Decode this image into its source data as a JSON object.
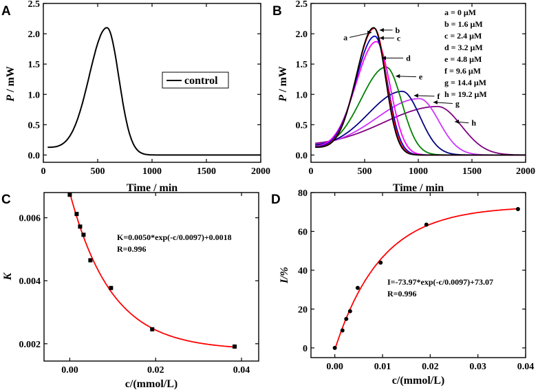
{
  "panels": {
    "A": "A",
    "B": "B",
    "C": "C",
    "D": "D"
  },
  "chart_data": [
    {
      "id": "A",
      "type": "line",
      "xlabel": "Time / min",
      "ylabel": "P / mW",
      "ylabel_var": "P",
      "ylabel_unit": " / mW",
      "xlim": [
        0,
        2000
      ],
      "ylim": [
        -0.12,
        2.5
      ],
      "xticks": [
        0,
        500,
        1000,
        1500,
        2000
      ],
      "yticks": [
        0.0,
        0.5,
        1.0,
        1.5,
        2.0,
        2.5
      ],
      "xtick_labels": [
        "0",
        "500",
        "1000",
        "1500",
        "2000"
      ],
      "ytick_labels": [
        "0.0",
        "0.5",
        "1.0",
        "1.5",
        "2.0",
        "2.5"
      ],
      "legend": {
        "entry": "control",
        "color": "#000000",
        "placement": "middle-right"
      },
      "series": [
        {
          "name": "control",
          "color": "#000000",
          "peak_time": 585,
          "peak_power": 2.1,
          "rise_width": 165,
          "fall_width": 110,
          "start_time": 40
        }
      ]
    },
    {
      "id": "B",
      "type": "line",
      "xlabel": "Time / min",
      "ylabel": "P / mW",
      "ylabel_var": "P",
      "ylabel_unit": " / mW",
      "xlim": [
        0,
        2000
      ],
      "ylim": [
        -0.12,
        2.5
      ],
      "xticks": [
        0,
        500,
        1000,
        1500,
        2000
      ],
      "yticks": [
        0.0,
        0.5,
        1.0,
        1.5,
        2.0,
        2.5
      ],
      "xtick_labels": [
        "0",
        "500",
        "1000",
        "1500",
        "2000"
      ],
      "ytick_labels": [
        "0.0",
        "0.5",
        "1.0",
        "1.5",
        "2.0",
        "2.5"
      ],
      "legend_entries": [
        "a  = 0 μM",
        "b  = 1.6 μM",
        "c  = 2.4 μM",
        "d  = 3.2 μM",
        "e  = 4.8 μM",
        "f  = 9.6 μM",
        "g  = 14.4 μM",
        "h  = 19.2 μM"
      ],
      "series": [
        {
          "name": "a",
          "concentration_uM": 0,
          "color": "#000000",
          "peak_time": 585,
          "peak_power": 2.1,
          "rise_width": 165,
          "fall_width": 110,
          "start_time": 40
        },
        {
          "name": "b",
          "concentration_uM": 1.6,
          "color": "#ff0000",
          "peak_time": 590,
          "peak_power": 2.09,
          "rise_width": 170,
          "fall_width": 112,
          "start_time": 40
        },
        {
          "name": "c",
          "concentration_uM": 2.4,
          "color": "#0000cc",
          "peak_time": 595,
          "peak_power": 1.96,
          "rise_width": 180,
          "fall_width": 118,
          "start_time": 40
        },
        {
          "name": "d",
          "concentration_uM": 3.2,
          "color": "#ff00ff",
          "peak_time": 610,
          "peak_power": 1.87,
          "rise_width": 195,
          "fall_width": 128,
          "start_time": 40
        },
        {
          "name": "e",
          "concentration_uM": 4.8,
          "color": "#008000",
          "peak_time": 700,
          "peak_power": 1.45,
          "rise_width": 240,
          "fall_width": 145,
          "start_time": 40
        },
        {
          "name": "f",
          "concentration_uM": 9.6,
          "color": "#000080",
          "peak_time": 850,
          "peak_power": 1.05,
          "rise_width": 330,
          "fall_width": 165,
          "start_time": 40
        },
        {
          "name": "g",
          "concentration_uM": 14.4,
          "color": "#cc33ff",
          "peak_time": 1010,
          "peak_power": 0.93,
          "rise_width": 420,
          "fall_width": 180,
          "start_time": 40
        },
        {
          "name": "h",
          "concentration_uM": 19.2,
          "color": "#800080",
          "peak_time": 1180,
          "peak_power": 0.8,
          "rise_width": 540,
          "fall_width": 220,
          "start_time": 40
        }
      ],
      "curve_labels": [
        {
          "text": "a",
          "target": [
            565,
            2.02
          ],
          "at": [
            360,
            1.94
          ]
        },
        {
          "text": "b",
          "target": [
            640,
            2.06
          ],
          "at": [
            760,
            2.06
          ]
        },
        {
          "text": "c",
          "target": [
            640,
            1.93
          ],
          "at": [
            775,
            1.93
          ]
        },
        {
          "text": "d",
          "target": [
            660,
            1.6
          ],
          "at": [
            860,
            1.6
          ]
        },
        {
          "text": "e",
          "target": [
            790,
            1.3
          ],
          "at": [
            980,
            1.29
          ]
        },
        {
          "text": "f",
          "target": [
            960,
            0.98
          ],
          "at": [
            1150,
            0.97
          ]
        },
        {
          "text": "g",
          "target": [
            1140,
            0.87
          ],
          "at": [
            1320,
            0.85
          ]
        },
        {
          "text": "h",
          "target": [
            1340,
            0.55
          ],
          "at": [
            1470,
            0.53
          ]
        }
      ]
    },
    {
      "id": "C",
      "type": "scatter",
      "xlabel": "c/(mmol/L)",
      "ylabel": "K",
      "xlim": [
        -0.006,
        0.044
      ],
      "ylim": [
        0.00145,
        0.0068
      ],
      "xticks": [
        0.0,
        0.02,
        0.04
      ],
      "yticks": [
        0.002,
        0.004,
        0.006
      ],
      "xtick_labels": [
        "0.00",
        "0.02",
        "0.04"
      ],
      "ytick_labels": [
        "0.002",
        "0.004",
        "0.006"
      ],
      "points": {
        "x": [
          0.0,
          0.0016,
          0.0024,
          0.0032,
          0.0048,
          0.0096,
          0.0192,
          0.0384
        ],
        "y": [
          0.00673,
          0.00612,
          0.00572,
          0.00546,
          0.00465,
          0.00377,
          0.00246,
          0.00191
        ]
      },
      "fit": {
        "A": 0.005,
        "t": 0.0097,
        "y0": 0.0018,
        "color": "#ff0000"
      },
      "equation": "K=0.0050*exp(-c/0.0097)+0.0018",
      "r_value": "R=0.996"
    },
    {
      "id": "D",
      "type": "scatter",
      "xlabel": "c/(mmol/L)",
      "ylabel": "I/%",
      "xlim": [
        -0.005,
        0.04
      ],
      "ylim": [
        -5,
        80
      ],
      "xticks": [
        0.0,
        0.01,
        0.02,
        0.03,
        0.04
      ],
      "yticks": [
        0,
        20,
        40,
        60,
        80
      ],
      "xtick_labels": [
        "0.00",
        "0.01",
        "0.02",
        "0.03",
        "0.04"
      ],
      "ytick_labels": [
        "0",
        "20",
        "40",
        "60",
        "80"
      ],
      "points": {
        "x": [
          0.0,
          0.0016,
          0.0024,
          0.0032,
          0.0048,
          0.0096,
          0.0192,
          0.0384
        ],
        "y": [
          0.0,
          9.0,
          14.9,
          18.9,
          30.9,
          43.9,
          63.5,
          71.5
        ]
      },
      "fit": {
        "A": -73.97,
        "t": 0.0097,
        "y0": 73.07,
        "color": "#ff0000"
      },
      "equation": "I=-73.97*exp(-c/0.0097)+73.07",
      "r_value": "R=0.996"
    }
  ]
}
